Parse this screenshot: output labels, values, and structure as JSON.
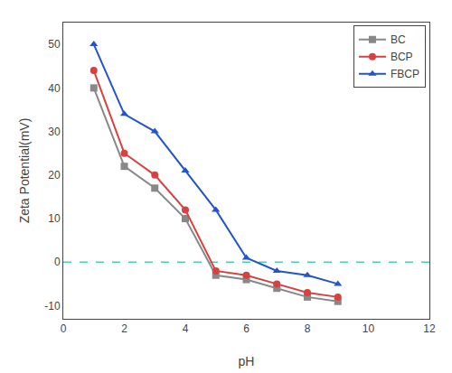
{
  "chart_data": {
    "type": "line",
    "x": [
      1,
      2,
      3,
      4,
      5,
      6,
      7,
      8,
      9
    ],
    "series": [
      {
        "name": "BC",
        "color": "#888888",
        "marker": "square",
        "values": [
          40,
          22,
          17,
          10,
          -3,
          -4,
          -6,
          -8,
          -9
        ]
      },
      {
        "name": "BCP",
        "color": "#d94040",
        "marker": "circle",
        "values": [
          44,
          25,
          20,
          12,
          -2,
          -3,
          -5,
          -7,
          -8
        ]
      },
      {
        "name": "FBCP",
        "color": "#2255cc",
        "marker": "triangle-up",
        "values": [
          50,
          34,
          30,
          21,
          12,
          1,
          -2,
          -3,
          -5
        ]
      }
    ],
    "hlines": [
      {
        "value": 0,
        "color": "#56c8b4",
        "line_style": "dash"
      }
    ],
    "xlabel": "pH",
    "ylabel": "Zeta Potential(mV)",
    "xlim": [
      0,
      12
    ],
    "ylim": [
      -13,
      55
    ],
    "xticks": [
      0,
      2,
      4,
      6,
      8,
      10,
      12
    ],
    "yticks": [
      -10,
      0,
      10,
      20,
      30,
      40,
      50
    ],
    "grid": false,
    "legend": "upper right"
  }
}
